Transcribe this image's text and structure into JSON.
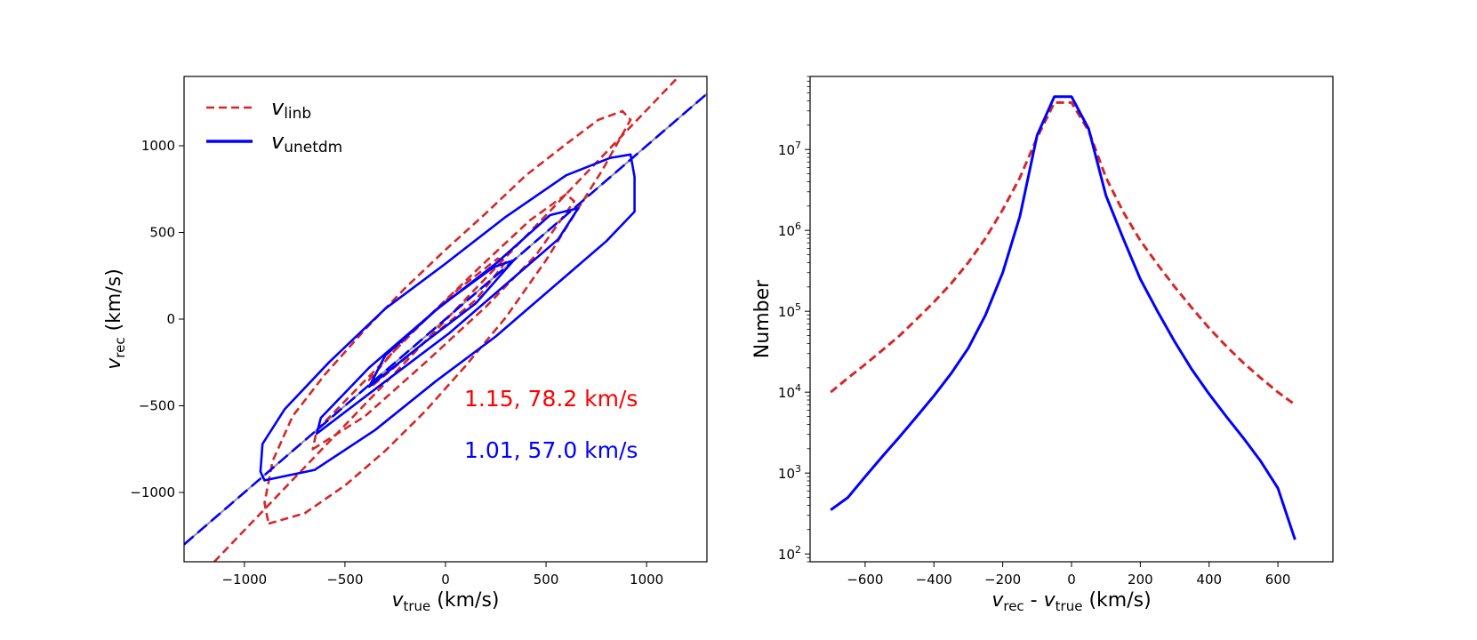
{
  "chart_data": [
    {
      "type": "contour",
      "xlabel": {
        "main": "v",
        "sub": "true",
        "unit": " (km/s)"
      },
      "ylabel": {
        "main": "v",
        "sub": "rec",
        "unit": " (km/s)"
      },
      "xlim": [
        -1300,
        1300
      ],
      "ylim": [
        -1400,
        1400
      ],
      "x_ticks": [
        -1000,
        -500,
        0,
        500,
        1000
      ],
      "y_ticks": [
        -1000,
        -500,
        0,
        500,
        1000
      ],
      "x_tick_labels": [
        "−1000",
        "−500",
        "0",
        "500",
        "1000"
      ],
      "y_tick_labels": [
        "−1000",
        "−500",
        "0",
        "500",
        "1000"
      ],
      "legend": {
        "placement": "top-left",
        "entries": [
          {
            "main": "v",
            "sub": "linb",
            "color": "#d62728",
            "style": "dashed"
          },
          {
            "main": "v",
            "sub": "unetdm",
            "color": "#0000ff",
            "style": "solid"
          }
        ]
      },
      "annotations": [
        {
          "text": "1.15, 78.2 km/s",
          "color": "#ff0000"
        },
        {
          "text": "1.01, 57.0 km/s",
          "color": "#0000ff"
        }
      ],
      "one_to_one_line": {
        "x": [
          -1300,
          1300
        ],
        "y": [
          -1300,
          1300
        ],
        "color": "#999999"
      },
      "series": [
        {
          "name": "v_linb",
          "color": "#d62728",
          "style": "dashed",
          "fit_line": {
            "x": [
              -1150,
              1160
            ],
            "y": [
              -1400,
              1400
            ]
          },
          "contours": [
            [
              [
                -880,
                -1180
              ],
              [
                -700,
                -1120
              ],
              [
                -500,
                -960
              ],
              [
                -300,
                -760
              ],
              [
                -100,
                -530
              ],
              [
                100,
                -270
              ],
              [
                300,
                10
              ],
              [
                500,
                340
              ],
              [
                650,
                620
              ],
              [
                780,
                860
              ],
              [
                920,
                1150
              ],
              [
                880,
                1200
              ],
              [
                760,
                1150
              ],
              [
                600,
                1010
              ],
              [
                400,
                830
              ],
              [
                200,
                610
              ],
              [
                0,
                400
              ],
              [
                -200,
                180
              ],
              [
                -400,
                -60
              ],
              [
                -600,
                -320
              ],
              [
                -760,
                -560
              ],
              [
                -860,
                -820
              ],
              [
                -900,
                -1060
              ],
              [
                -880,
                -1180
              ]
            ],
            [
              [
                -660,
                -750
              ],
              [
                -400,
                -560
              ],
              [
                -100,
                -250
              ],
              [
                200,
                70
              ],
              [
                450,
                370
              ],
              [
                640,
                680
              ],
              [
                600,
                720
              ],
              [
                420,
                570
              ],
              [
                180,
                310
              ],
              [
                -80,
                20
              ],
              [
                -380,
                -330
              ],
              [
                -640,
                -640
              ],
              [
                -660,
                -750
              ]
            ],
            [
              [
                -360,
                -380
              ],
              [
                -120,
                -150
              ],
              [
                150,
                110
              ],
              [
                300,
                330
              ],
              [
                260,
                350
              ],
              [
                60,
                170
              ],
              [
                -200,
                -110
              ],
              [
                -380,
                -350
              ],
              [
                -360,
                -380
              ]
            ]
          ]
        },
        {
          "name": "v_unetdm",
          "color": "#0000ff",
          "style": "solid",
          "fit_line": {
            "x": [
              -1300,
              1300
            ],
            "y": [
              -1300,
              1300
            ]
          },
          "contours": [
            [
              [
                -900,
                -930
              ],
              [
                -650,
                -870
              ],
              [
                -350,
                -640
              ],
              [
                -50,
                -360
              ],
              [
                250,
                -100
              ],
              [
                550,
                200
              ],
              [
                800,
                450
              ],
              [
                940,
                620
              ],
              [
                940,
                820
              ],
              [
                920,
                950
              ],
              [
                820,
                930
              ],
              [
                600,
                830
              ],
              [
                300,
                590
              ],
              [
                0,
                320
              ],
              [
                -300,
                60
              ],
              [
                -580,
                -250
              ],
              [
                -800,
                -520
              ],
              [
                -910,
                -720
              ],
              [
                -920,
                -880
              ],
              [
                -900,
                -930
              ]
            ],
            [
              [
                -640,
                -660
              ],
              [
                -300,
                -360
              ],
              [
                20,
                -80
              ],
              [
                300,
                200
              ],
              [
                560,
                460
              ],
              [
                660,
                640
              ],
              [
                520,
                600
              ],
              [
                250,
                320
              ],
              [
                -50,
                50
              ],
              [
                -380,
                -280
              ],
              [
                -620,
                -570
              ],
              [
                -640,
                -660
              ]
            ],
            [
              [
                -380,
                -390
              ],
              [
                -100,
                -130
              ],
              [
                150,
                90
              ],
              [
                340,
                340
              ],
              [
                240,
                300
              ],
              [
                -20,
                80
              ],
              [
                -300,
                -210
              ],
              [
                -380,
                -390
              ]
            ]
          ]
        }
      ]
    },
    {
      "type": "line",
      "xlabel": {
        "main": "v",
        "sub": "rec",
        "mid": " - ",
        "main2": "v",
        "sub2": "true",
        "unit": " (km/s)"
      },
      "ylabel": "Number",
      "xlim": [
        -760,
        760
      ],
      "ylim": [
        80,
        80000000
      ],
      "y_scale": "log",
      "x_ticks": [
        -600,
        -400,
        -200,
        0,
        200,
        400,
        600
      ],
      "x_tick_labels": [
        "−600",
        "−400",
        "−200",
        "0",
        "200",
        "400",
        "600"
      ],
      "y_ticks": [
        100,
        1000,
        10000,
        100000,
        1000000,
        10000000
      ],
      "y_tick_labels": [
        {
          "base": "10",
          "exp": "2"
        },
        {
          "base": "10",
          "exp": "3"
        },
        {
          "base": "10",
          "exp": "4"
        },
        {
          "base": "10",
          "exp": "5"
        },
        {
          "base": "10",
          "exp": "6"
        },
        {
          "base": "10",
          "exp": "7"
        }
      ],
      "series": [
        {
          "name": "v_linb",
          "color": "#d62728",
          "style": "dashed",
          "x": [
            -700,
            -650,
            -600,
            -550,
            -500,
            -450,
            -400,
            -350,
            -300,
            -250,
            -200,
            -150,
            -100,
            -50,
            0,
            50,
            100,
            150,
            200,
            250,
            300,
            350,
            400,
            450,
            500,
            550,
            600,
            650
          ],
          "y": [
            10000,
            15000,
            22000,
            33000,
            50000,
            80000,
            130000,
            220000,
            400000,
            800000,
            1800000,
            4500000,
            14000000,
            38000000,
            38000000,
            17000000,
            4500000,
            1700000,
            750000,
            380000,
            200000,
            110000,
            62000,
            37000,
            23000,
            15000,
            10000,
            7000
          ]
        },
        {
          "name": "v_unetdm",
          "color": "#0000ff",
          "style": "solid",
          "x": [
            -700,
            -650,
            -600,
            -550,
            -500,
            -450,
            -400,
            -350,
            -300,
            -250,
            -200,
            -150,
            -100,
            -50,
            0,
            50,
            100,
            150,
            200,
            250,
            300,
            350,
            400,
            450,
            500,
            550,
            600,
            650
          ],
          "y": [
            350,
            500,
            900,
            1600,
            2800,
            5000,
            9000,
            17000,
            35000,
            90000,
            300000,
            1500000,
            15000000,
            45000000,
            45000000,
            18000000,
            2700000,
            800000,
            250000,
            100000,
            42000,
            19000,
            9500,
            5000,
            2700,
            1400,
            650,
            150
          ]
        }
      ]
    }
  ]
}
